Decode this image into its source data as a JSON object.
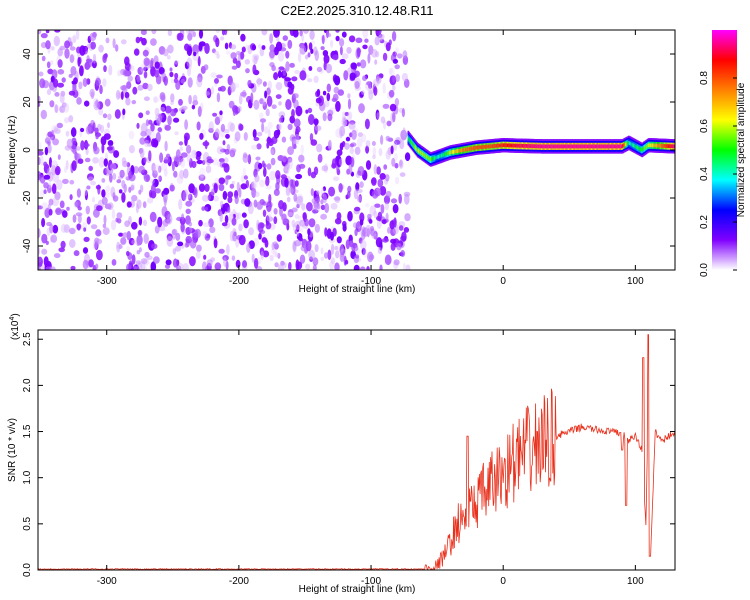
{
  "title": "C2E2.2025.310.12.48.R11",
  "chart_data": [
    {
      "type": "heatmap",
      "xlabel": "Height of straight line (km)",
      "ylabel": "Frequency (Hz)",
      "xlim": [
        -352,
        130
      ],
      "ylim": [
        -50,
        50
      ],
      "xticks": [
        -300,
        -200,
        -100,
        0,
        100
      ],
      "yticks": [
        -40,
        -20,
        0,
        20,
        40
      ],
      "colorbar": {
        "label": "Normalized spectral amplitude",
        "range": [
          0,
          1
        ],
        "ticks": [
          "0.0",
          "0.2",
          "0.4",
          "0.6",
          "0.8"
        ],
        "colors": [
          "#ffffff",
          "#8000ff",
          "#0000ff",
          "#00ffff",
          "#00ff00",
          "#ffff00",
          "#ff8000",
          "#ff0000",
          "#ff00ff"
        ]
      },
      "noise_region_x": [
        -352,
        -72
      ],
      "ridge": {
        "x": [
          -72,
          -65,
          -55,
          -50,
          -45,
          -40,
          -30,
          -20,
          -10,
          0,
          10,
          30,
          60,
          90,
          95,
          105,
          110,
          130
        ],
        "freq": [
          5,
          0,
          -4,
          -3,
          -2,
          -1,
          0,
          1,
          1.5,
          2,
          1.8,
          1.5,
          1.5,
          1.5,
          3,
          0,
          2,
          1.5
        ],
        "amplitude": [
          0.45,
          0.6,
          0.55,
          0.4,
          0.45,
          0.6,
          0.75,
          0.8,
          0.8,
          0.85,
          0.9,
          0.95,
          0.95,
          0.95,
          0.4,
          0.5,
          0.6,
          0.95
        ]
      }
    },
    {
      "type": "line",
      "xlabel": "Height of straight line (km)",
      "ylabel": "SNR (10 * v/v)",
      "yscale_note": "(x10",
      "yscale_exp": "4",
      "xlim": [
        -352,
        130
      ],
      "ylim": [
        0,
        2.6
      ],
      "xticks": [
        -300,
        -200,
        -100,
        0,
        100
      ],
      "yticks": [
        "0.0",
        "0.5",
        "1.0",
        "1.5",
        "2.0",
        "2.5"
      ],
      "color": "#e8301c",
      "x": [
        -352,
        -60,
        -50,
        -45,
        -40,
        -35,
        -30,
        -25,
        -20,
        -10,
        0,
        10,
        20,
        30,
        40,
        50,
        60,
        70,
        80,
        90,
        95,
        100,
        105,
        108,
        110,
        112,
        115,
        120,
        125,
        130
      ],
      "snr": [
        0.01,
        0.01,
        0.05,
        0.15,
        0.3,
        0.5,
        0.55,
        0.65,
        0.75,
        0.9,
        1.05,
        1.2,
        1.3,
        1.38,
        1.45,
        1.5,
        1.55,
        1.52,
        1.5,
        1.48,
        1.4,
        1.45,
        1.3,
        0.5,
        2.0,
        0.3,
        1.5,
        1.4,
        1.45,
        1.5
      ],
      "spikes": [
        {
          "x": -27,
          "y": 1.45
        },
        {
          "x": 90,
          "y": 1.3
        },
        {
          "x": 93,
          "y": 0.7
        },
        {
          "x": 106,
          "y": 2.3
        },
        {
          "x": 110,
          "y": 2.55
        },
        {
          "x": 111,
          "y": 0.15
        }
      ]
    }
  ]
}
